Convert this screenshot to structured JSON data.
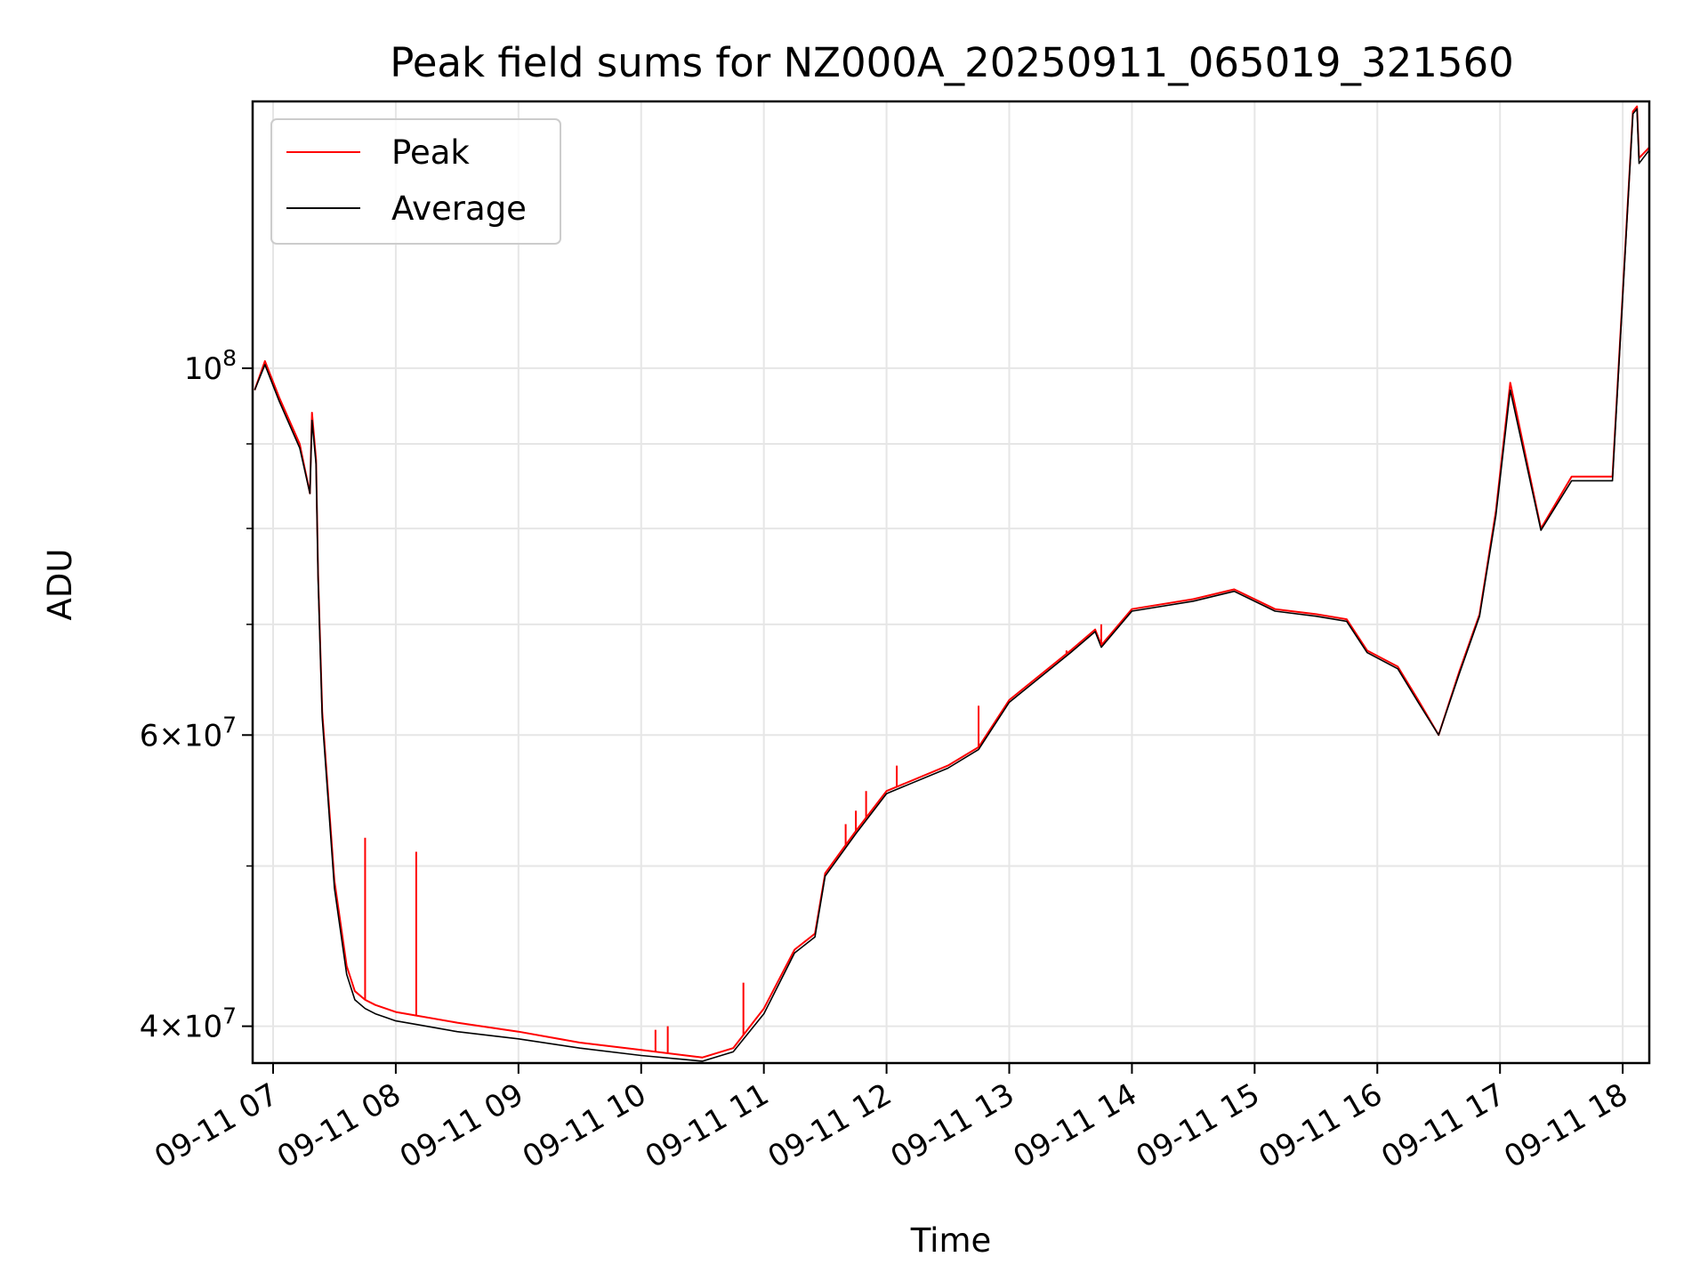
{
  "chart_data": {
    "type": "line",
    "title": "Peak field sums for NZ000A_20250911_065019_321560",
    "xlabel": "Time",
    "ylabel": "ADU",
    "yscale": "log",
    "ylim": [
      38000000,
      145000000
    ],
    "xlim": [
      "2025-09-11 06:50",
      "2025-09-11 18:13"
    ],
    "grid": true,
    "legend_position": "top-left",
    "x_tick_labels": [
      "09-11 07",
      "09-11 08",
      "09-11 09",
      "09-11 10",
      "09-11 11",
      "09-11 12",
      "09-11 13",
      "09-11 14",
      "09-11 15",
      "09-11 16",
      "09-11 17",
      "09-11 18"
    ],
    "x_ticks": [
      "2025-09-11 07:00",
      "2025-09-11 08:00",
      "2025-09-11 09:00",
      "2025-09-11 10:00",
      "2025-09-11 11:00",
      "2025-09-11 12:00",
      "2025-09-11 13:00",
      "2025-09-11 14:00",
      "2025-09-11 15:00",
      "2025-09-11 16:00",
      "2025-09-11 17:00",
      "2025-09-11 18:00"
    ],
    "y_major_ticks": [
      {
        "value": 40000000,
        "mantissa": "4",
        "exponent": "7"
      },
      {
        "value": 60000000,
        "mantissa": "6",
        "exponent": "7"
      },
      {
        "value": 100000000,
        "mantissa": "",
        "exponent": "8"
      }
    ],
    "y_minor_ticks": [
      50000000,
      70000000,
      80000000,
      90000000
    ],
    "series": [
      {
        "name": "Peak",
        "color": "#ff0000",
        "x": [
          "2025-09-11 06:51",
          "2025-09-11 06:56",
          "2025-09-11 07:03",
          "2025-09-11 07:13",
          "2025-09-11 07:18",
          "2025-09-11 07:19",
          "2025-09-11 07:21",
          "2025-09-11 07:22",
          "2025-09-11 07:24",
          "2025-09-11 07:30",
          "2025-09-11 07:36",
          "2025-09-11 07:40",
          "2025-09-11 07:45",
          "2025-09-11 07:50",
          "2025-09-11 08:00",
          "2025-09-11 08:10",
          "2025-09-11 08:30",
          "2025-09-11 09:00",
          "2025-09-11 09:30",
          "2025-09-11 10:00",
          "2025-09-11 10:30",
          "2025-09-11 10:45",
          "2025-09-11 11:00",
          "2025-09-11 11:15",
          "2025-09-11 11:25",
          "2025-09-11 11:30",
          "2025-09-11 11:45",
          "2025-09-11 12:00",
          "2025-09-11 12:30",
          "2025-09-11 12:45",
          "2025-09-11 13:00",
          "2025-09-11 13:30",
          "2025-09-11 13:42",
          "2025-09-11 13:45",
          "2025-09-11 14:00",
          "2025-09-11 14:30",
          "2025-09-11 14:50",
          "2025-09-11 15:10",
          "2025-09-11 15:30",
          "2025-09-11 15:45",
          "2025-09-11 15:55",
          "2025-09-11 16:10",
          "2025-09-11 16:20",
          "2025-09-11 16:30",
          "2025-09-11 16:40",
          "2025-09-11 16:50",
          "2025-09-11 16:58",
          "2025-09-11 17:05",
          "2025-09-11 17:20",
          "2025-09-11 17:35",
          "2025-09-11 17:45",
          "2025-09-11 17:55",
          "2025-09-11 18:05",
          "2025-09-11 18:07",
          "2025-09-11 18:08",
          "2025-09-11 18:13"
        ],
        "y": [
          97000000,
          101000000,
          96000000,
          90000000,
          84000000,
          94000000,
          88000000,
          75000000,
          62000000,
          49000000,
          43500000,
          42000000,
          41500000,
          41200000,
          40800000,
          40600000,
          40200000,
          39700000,
          39100000,
          38700000,
          38300000,
          38800000,
          41000000,
          44500000,
          45500000,
          49500000,
          52500000,
          55500000,
          57500000,
          59000000,
          63000000,
          67500000,
          69500000,
          68000000,
          71500000,
          72500000,
          73500000,
          71500000,
          71000000,
          70500000,
          67500000,
          66000000,
          63000000,
          60000000,
          65500000,
          71000000,
          82000000,
          98000000,
          80000000,
          86000000,
          86000000,
          86000000,
          143000000,
          144000000,
          134000000,
          136000000
        ]
      },
      {
        "name": "Average",
        "color": "#000000",
        "x": [
          "2025-09-11 06:51",
          "2025-09-11 06:56",
          "2025-09-11 07:03",
          "2025-09-11 07:13",
          "2025-09-11 07:18",
          "2025-09-11 07:19",
          "2025-09-11 07:21",
          "2025-09-11 07:22",
          "2025-09-11 07:24",
          "2025-09-11 07:30",
          "2025-09-11 07:36",
          "2025-09-11 07:40",
          "2025-09-11 07:45",
          "2025-09-11 07:50",
          "2025-09-11 08:00",
          "2025-09-11 08:10",
          "2025-09-11 08:30",
          "2025-09-11 09:00",
          "2025-09-11 09:30",
          "2025-09-11 10:00",
          "2025-09-11 10:30",
          "2025-09-11 10:45",
          "2025-09-11 11:00",
          "2025-09-11 11:15",
          "2025-09-11 11:25",
          "2025-09-11 11:30",
          "2025-09-11 11:45",
          "2025-09-11 12:00",
          "2025-09-11 12:30",
          "2025-09-11 12:45",
          "2025-09-11 13:00",
          "2025-09-11 13:30",
          "2025-09-11 13:42",
          "2025-09-11 13:45",
          "2025-09-11 14:00",
          "2025-09-11 14:30",
          "2025-09-11 14:50",
          "2025-09-11 15:10",
          "2025-09-11 15:30",
          "2025-09-11 15:45",
          "2025-09-11 15:55",
          "2025-09-11 16:10",
          "2025-09-11 16:20",
          "2025-09-11 16:30",
          "2025-09-11 16:40",
          "2025-09-11 16:50",
          "2025-09-11 16:58",
          "2025-09-11 17:05",
          "2025-09-11 17:20",
          "2025-09-11 17:35",
          "2025-09-11 17:45",
          "2025-09-11 17:55",
          "2025-09-11 18:05",
          "2025-09-11 18:07",
          "2025-09-11 18:08",
          "2025-09-11 18:13"
        ],
        "y": [
          97000000,
          100500000,
          95500000,
          89500000,
          84000000,
          93000000,
          87500000,
          74500000,
          61500000,
          48500000,
          43000000,
          41500000,
          41000000,
          40700000,
          40300000,
          40100000,
          39700000,
          39300000,
          38800000,
          38400000,
          38100000,
          38600000,
          40700000,
          44300000,
          45300000,
          49300000,
          52300000,
          55300000,
          57300000,
          58800000,
          62800000,
          67300000,
          69300000,
          67800000,
          71300000,
          72300000,
          73300000,
          71300000,
          70800000,
          70300000,
          67300000,
          65800000,
          62800000,
          60000000,
          65300000,
          70800000,
          81500000,
          97000000,
          79800000,
          85500000,
          85500000,
          85500000,
          142500000,
          143500000,
          133000000,
          135500000
        ]
      }
    ],
    "spikes": {
      "series": "Peak",
      "color": "#ff0000",
      "x": [
        "2025-09-11 07:45",
        "2025-09-11 08:10",
        "2025-09-11 10:07",
        "2025-09-11 10:13",
        "2025-09-11 10:50",
        "2025-09-11 11:40",
        "2025-09-11 11:45",
        "2025-09-11 11:50",
        "2025-09-11 12:05",
        "2025-09-11 12:45",
        "2025-09-11 13:28",
        "2025-09-11 13:45"
      ],
      "top": [
        52000000,
        51000000,
        39800000,
        40000000,
        42500000,
        53000000,
        54000000,
        55500000,
        57500000,
        62500000,
        67500000,
        70000000
      ]
    }
  }
}
